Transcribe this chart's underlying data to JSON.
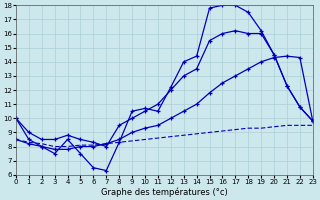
{
  "title": "Graphe des températures (°c)",
  "bg_color": "#cde8ed",
  "grid_color": "#aacfd6",
  "line_color": "#0000bb",
  "xlim": [
    0,
    23
  ],
  "ylim": [
    6,
    18
  ],
  "xticks": [
    0,
    1,
    2,
    3,
    4,
    5,
    6,
    7,
    8,
    9,
    10,
    11,
    12,
    13,
    14,
    15,
    16,
    17,
    18,
    19,
    20,
    21,
    22,
    23
  ],
  "yticks": [
    6,
    7,
    8,
    9,
    10,
    11,
    12,
    13,
    14,
    15,
    16,
    17,
    18
  ],
  "curve1_x": [
    0,
    1,
    2,
    3,
    4,
    5,
    6,
    7,
    8,
    9,
    10,
    11,
    12,
    13,
    14,
    15,
    16,
    17,
    18,
    19,
    20,
    21,
    22,
    23
  ],
  "curve1_y": [
    10.0,
    8.5,
    8.0,
    7.5,
    8.5,
    7.5,
    6.5,
    6.3,
    8.3,
    10.5,
    10.7,
    10.5,
    12.2,
    14.0,
    14.4,
    17.8,
    18.0,
    18.0,
    17.5,
    16.2,
    14.5,
    12.3,
    10.8,
    9.8
  ],
  "curve2_x": [
    0,
    1,
    2,
    3,
    4,
    5,
    6,
    7,
    8,
    9,
    10,
    11,
    12,
    13,
    14,
    15,
    16,
    17,
    18,
    19,
    20,
    21,
    22,
    23
  ],
  "curve2_y": [
    10.0,
    9.0,
    8.5,
    8.5,
    8.8,
    8.5,
    8.3,
    8.0,
    9.5,
    10.0,
    10.5,
    11.0,
    12.0,
    13.0,
    13.5,
    15.5,
    16.0,
    16.2,
    16.0,
    16.0,
    14.5,
    12.3,
    10.8,
    9.8
  ],
  "curve3_x": [
    0,
    1,
    2,
    3,
    4,
    5,
    6,
    7,
    8,
    9,
    10,
    11,
    12,
    13,
    14,
    15,
    16,
    17,
    18,
    19,
    20,
    21,
    22,
    23
  ],
  "curve3_y": [
    8.5,
    8.2,
    8.0,
    7.8,
    7.8,
    8.0,
    8.0,
    8.2,
    8.5,
    9.0,
    9.3,
    9.5,
    10.0,
    10.5,
    11.0,
    11.8,
    12.5,
    13.0,
    13.5,
    14.0,
    14.3,
    14.4,
    14.3,
    9.8
  ],
  "curve4_x": [
    0,
    1,
    2,
    3,
    4,
    5,
    6,
    7,
    8,
    9,
    10,
    11,
    12,
    13,
    14,
    15,
    16,
    17,
    18,
    19,
    20,
    21,
    22,
    23
  ],
  "curve4_y": [
    8.5,
    8.3,
    8.2,
    8.0,
    8.0,
    8.1,
    8.1,
    8.2,
    8.3,
    8.4,
    8.5,
    8.6,
    8.7,
    8.8,
    8.9,
    9.0,
    9.1,
    9.2,
    9.3,
    9.3,
    9.4,
    9.5,
    9.5,
    9.5
  ]
}
